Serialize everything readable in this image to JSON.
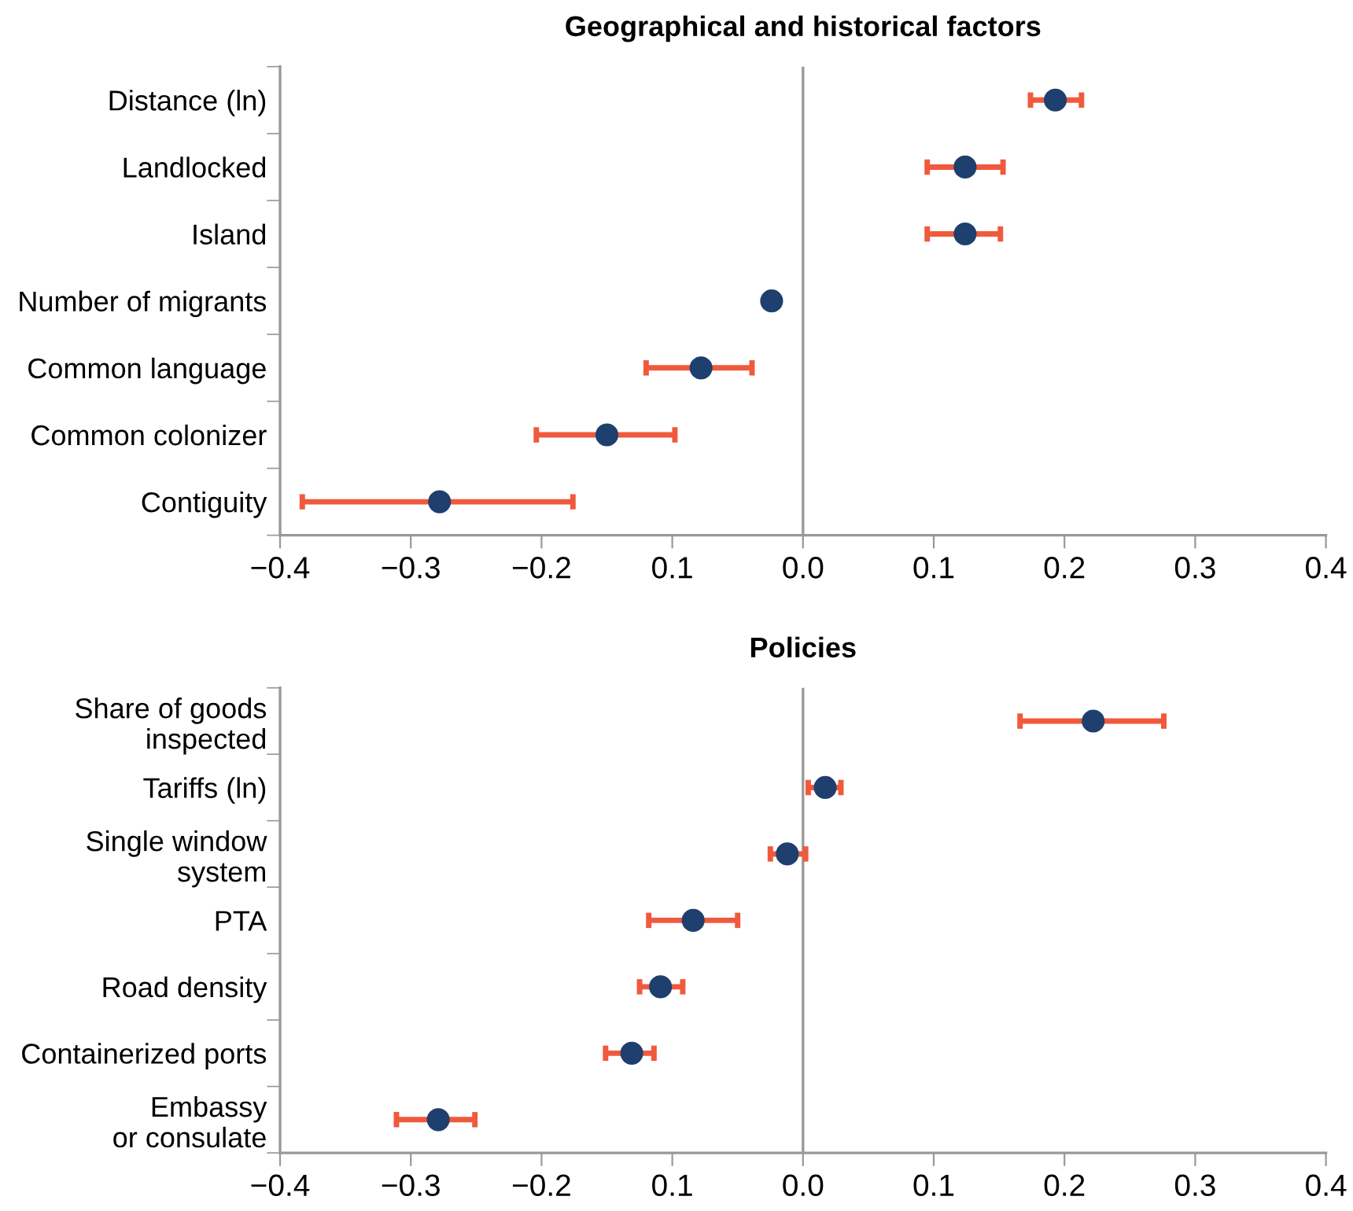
{
  "chart_data": [
    {
      "type": "scatter",
      "orientation": "horizontal",
      "title": "Geographical and historical factors",
      "categories": [
        "Distance (ln)",
        "Landlocked",
        "Island",
        "Number of migrants",
        "Common language",
        "Common colonizer",
        "Contiguity"
      ],
      "color": "#1f3f6e",
      "values": [
        0.193,
        0.124,
        0.124,
        -0.024,
        -0.078,
        -0.15,
        -0.278
      ],
      "errors": [
        [
          0.174,
          0.213
        ],
        [
          0.095,
          0.153
        ],
        [
          0.095,
          0.151
        ],
        [
          -0.027,
          -0.022
        ],
        [
          -0.12,
          -0.039
        ],
        [
          -0.204,
          -0.098
        ],
        [
          -0.383,
          -0.176
        ]
      ],
      "xlim": [
        -0.4,
        0.4
      ],
      "xticks": [
        {
          "value": -0.4,
          "label": "−0.4"
        },
        {
          "value": -0.3,
          "label": "−0.3"
        },
        {
          "value": -0.2,
          "label": "−0.2"
        },
        {
          "value": -0.1,
          "label": "0.1"
        },
        {
          "value": 0,
          "label": "0.0"
        },
        0.1,
        0.2,
        0.3,
        0.4
      ],
      "ref_lines": [
        {
          "axis": "x",
          "value": 0,
          "color": "#999999"
        }
      ],
      "marker": "circle",
      "grid": false,
      "legend": false
    },
    {
      "type": "scatter",
      "orientation": "horizontal",
      "title": "Policies",
      "categories": [
        "Share of goods\ninspected",
        "Tariffs (ln)",
        "Single window\nsystem",
        "PTA",
        "Road density",
        "Containerized ports",
        "Embassy\nor consulate"
      ],
      "color": "#1f3f6e",
      "values": [
        0.222,
        0.017,
        -0.012,
        -0.084,
        -0.109,
        -0.131,
        -0.279
      ],
      "errors": [
        [
          0.166,
          0.276
        ],
        [
          0.004,
          0.029
        ],
        [
          -0.025,
          0.002
        ],
        [
          -0.118,
          -0.05
        ],
        [
          -0.125,
          -0.092
        ],
        [
          -0.151,
          -0.114
        ],
        [
          -0.311,
          -0.251
        ]
      ],
      "xlim": [
        -0.4,
        0.4
      ],
      "xticks": [
        {
          "value": -0.4,
          "label": "−0.4"
        },
        {
          "value": -0.3,
          "label": "−0.3"
        },
        {
          "value": -0.2,
          "label": "−0.2"
        },
        {
          "value": -0.1,
          "label": "0.1"
        },
        {
          "value": 0,
          "label": "0.0"
        },
        0.1,
        0.2,
        0.3,
        0.4
      ],
      "ref_lines": [
        {
          "axis": "x",
          "value": 0,
          "color": "#999999"
        }
      ],
      "marker": "circle",
      "grid": false,
      "legend": false
    }
  ]
}
